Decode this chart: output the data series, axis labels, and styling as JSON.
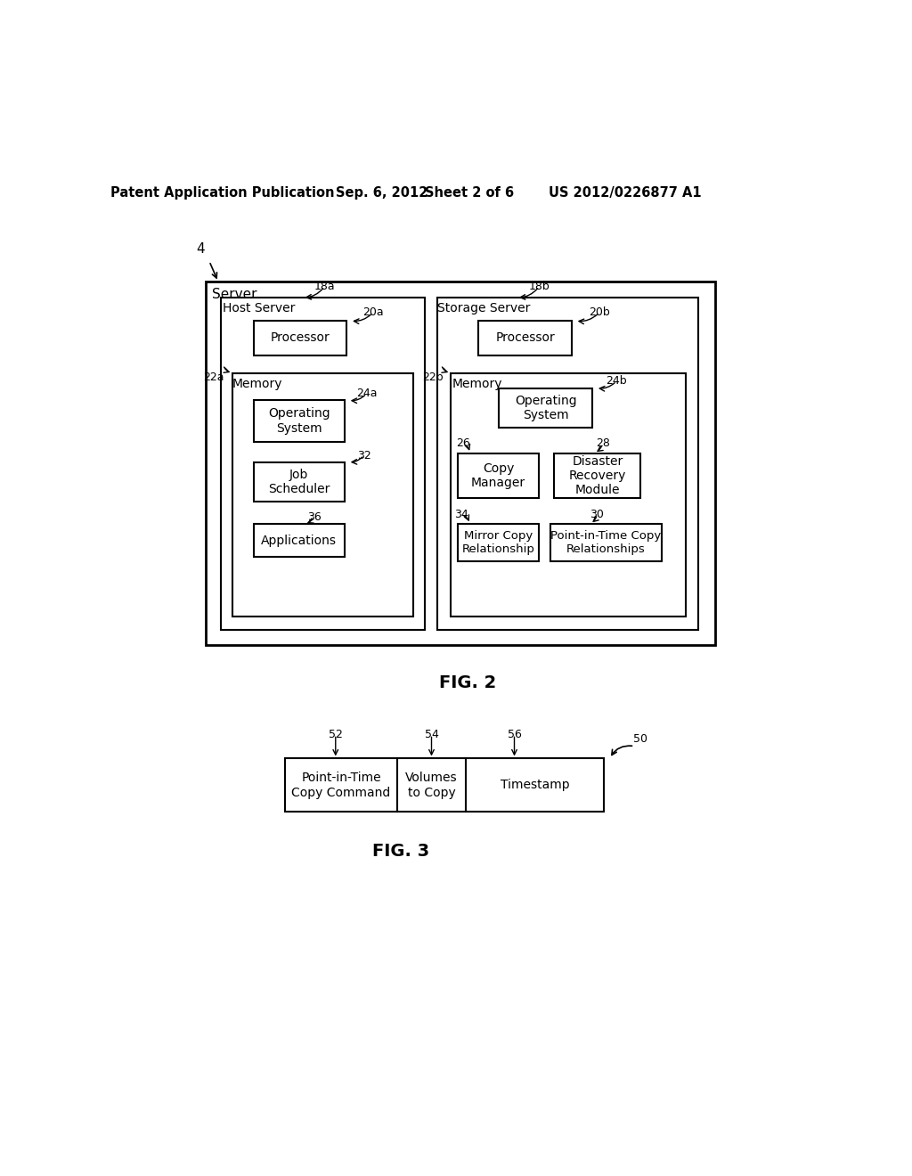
{
  "bg_color": "#ffffff",
  "header_line1": "Patent Application Publication",
  "header_date": "Sep. 6, 2012",
  "header_sheet": "Sheet 2 of 6",
  "header_patent": "US 2012/0226877 A1",
  "fig2_label": "FIG. 2",
  "fig3_label": "FIG. 3",
  "server_label": "Server",
  "server_num": "4",
  "host_server_label": "Host Server",
  "host_server_num": "18a",
  "host_memory_label": "Memory",
  "host_memory_num": "22a",
  "host_processor_label": "Processor",
  "host_processor_num": "20a",
  "host_os_label": "Operating\nSystem",
  "host_os_num": "24a",
  "host_job_label": "Job\nScheduler",
  "host_job_num": "32",
  "host_apps_label": "Applications",
  "host_apps_num": "36",
  "storage_server_label": "Storage Server",
  "storage_server_num": "18b",
  "storage_memory_label": "Memory",
  "storage_memory_num": "22b",
  "storage_processor_label": "Processor",
  "storage_processor_num": "20b",
  "storage_os_label": "Operating\nSystem",
  "storage_os_num": "24b",
  "copy_manager_label": "Copy\nManager",
  "copy_manager_num": "26",
  "disaster_label": "Disaster\nRecovery\nModule",
  "disaster_num": "28",
  "mirror_label": "Mirror Copy\nRelationship",
  "mirror_num": "34",
  "pit_rel_label": "Point-in-Time Copy\nRelationships",
  "pit_rel_num": "30",
  "fig3_rec_label": "50",
  "fig3_col1_label": "Point-in-Time\nCopy Command",
  "fig3_col1_num": "52",
  "fig3_col2_label": "Volumes\nto Copy",
  "fig3_col2_num": "54",
  "fig3_col3_label": "Timestamp",
  "fig3_col3_num": "56"
}
